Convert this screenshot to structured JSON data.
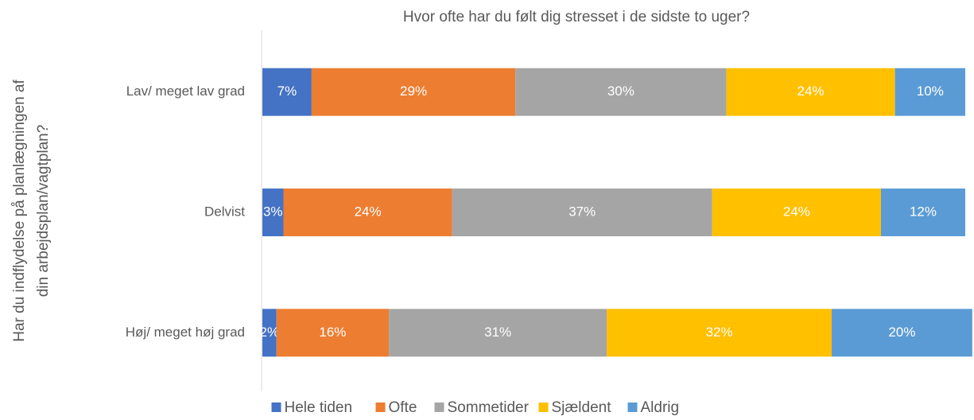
{
  "chart_data": {
    "type": "stacked-barh",
    "title": "Hvor ofte har du følt dig stresset i de sidste to uger?",
    "y_label": [
      "Har du indflydelse på planlægningen af",
      "din arbejdsplan/vagtplan?"
    ],
    "categories": [
      "Lav/ meget lav grad",
      "Delvist",
      "Høj/ meget høj grad"
    ],
    "xlim": [
      0,
      100
    ],
    "series": [
      {
        "name": "Hele tiden",
        "color": "#4472c4",
        "values": [
          7,
          3,
          2
        ],
        "value_labels": [
          "7%",
          "3%",
          "2%"
        ]
      },
      {
        "name": "Ofte",
        "color": "#ed7d31",
        "values": [
          29,
          24,
          16
        ],
        "value_labels": [
          "29%",
          "24%",
          "16%"
        ]
      },
      {
        "name": "Sommetider",
        "color": "#a5a5a5",
        "values": [
          30,
          37,
          31
        ],
        "value_labels": [
          "30%",
          "37%",
          "31%"
        ]
      },
      {
        "name": "Sjældent",
        "color": "#ffc000",
        "values": [
          24,
          24,
          32
        ],
        "value_labels": [
          "24%",
          "24%",
          "32%"
        ]
      },
      {
        "name": "Aldrig",
        "color": "#5b9bd5",
        "values": [
          10,
          12,
          20
        ],
        "value_labels": [
          "10%",
          "12%",
          "20%"
        ]
      }
    ],
    "legend": "bottom"
  }
}
